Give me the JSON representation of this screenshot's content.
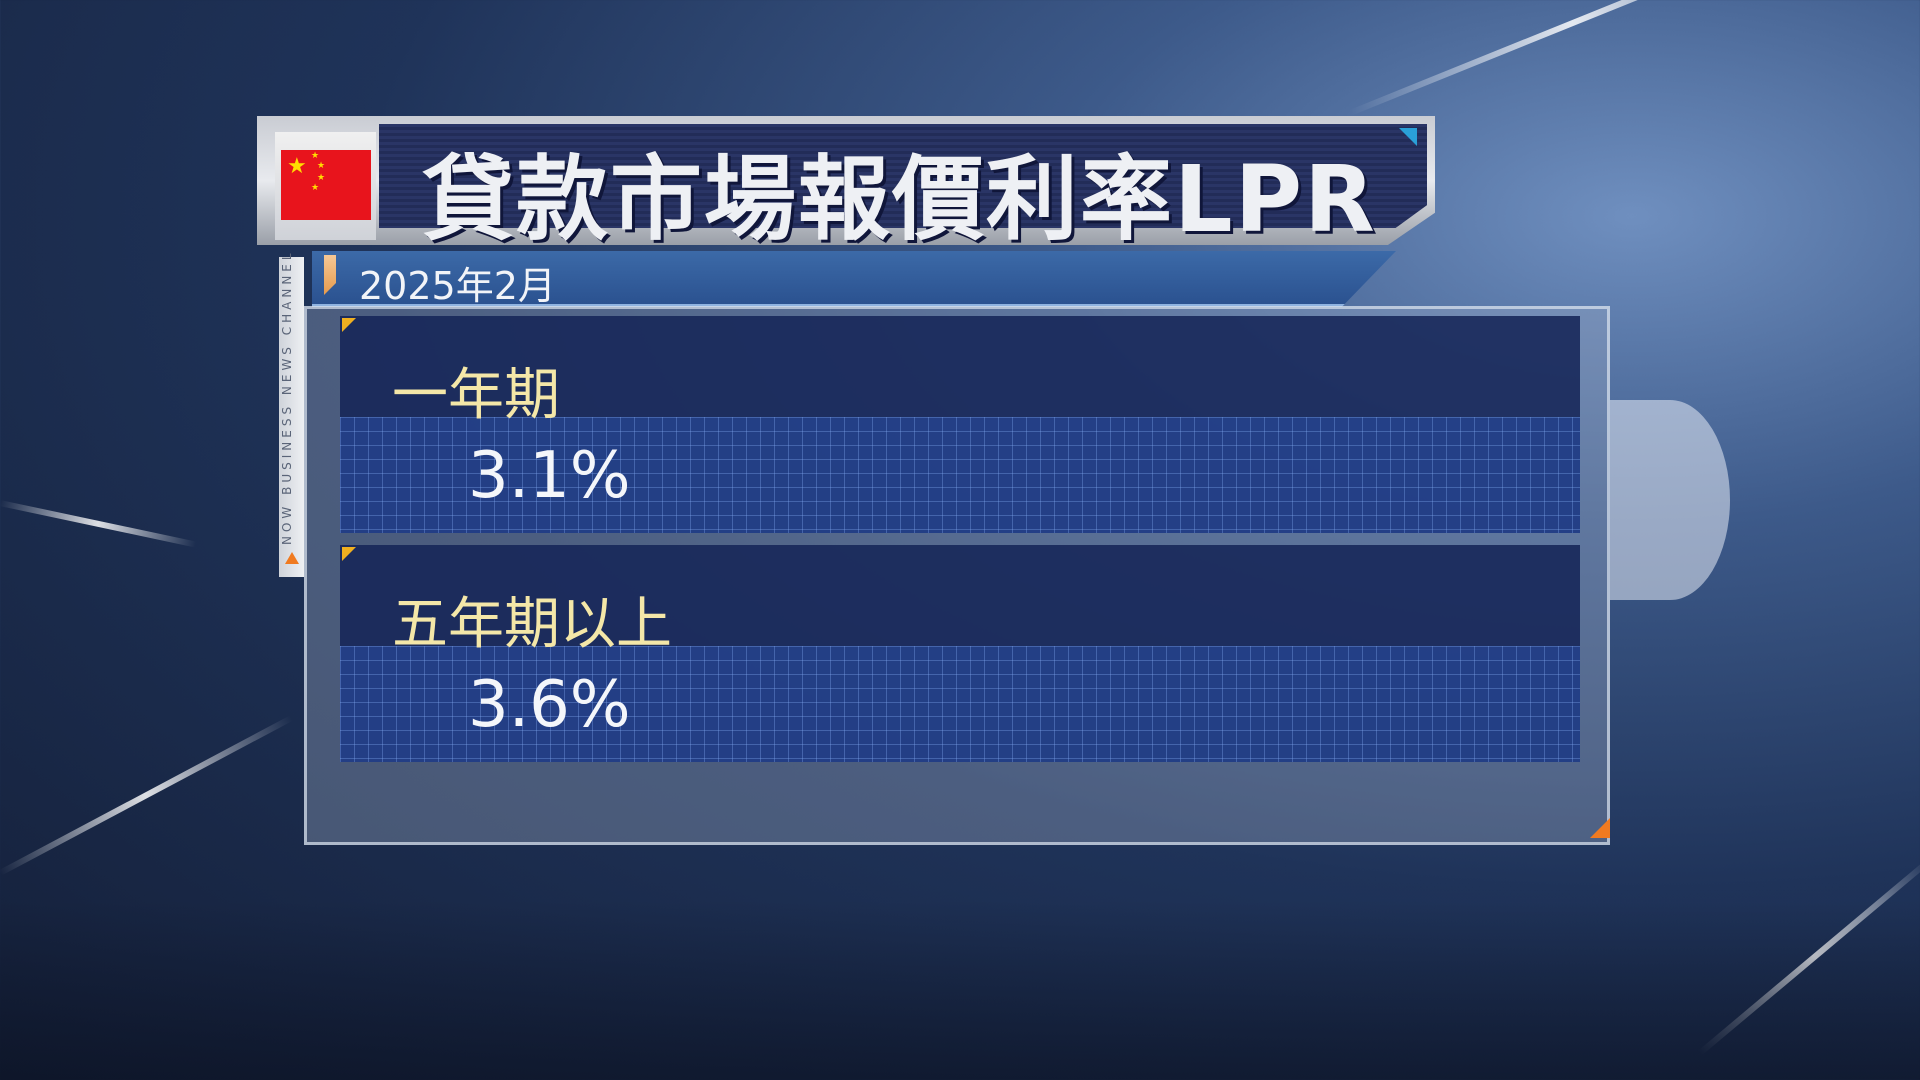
{
  "header": {
    "flag_icon": "china-flag",
    "title": "貸款市場報價利率LPR",
    "date": "2025年2月"
  },
  "channel_branding": "NOW BUSINESS NEWS CHANNEL",
  "rates": [
    {
      "term": "一年期",
      "value": "3.1%"
    },
    {
      "term": "五年期以上",
      "value": "3.6%"
    }
  ],
  "colors": {
    "title_bg": "#252f5e",
    "date_bar": "#3462a0",
    "label_text": "#f4e7a8",
    "accent_orange": "#f07a20",
    "flag_red": "#e8141c"
  }
}
